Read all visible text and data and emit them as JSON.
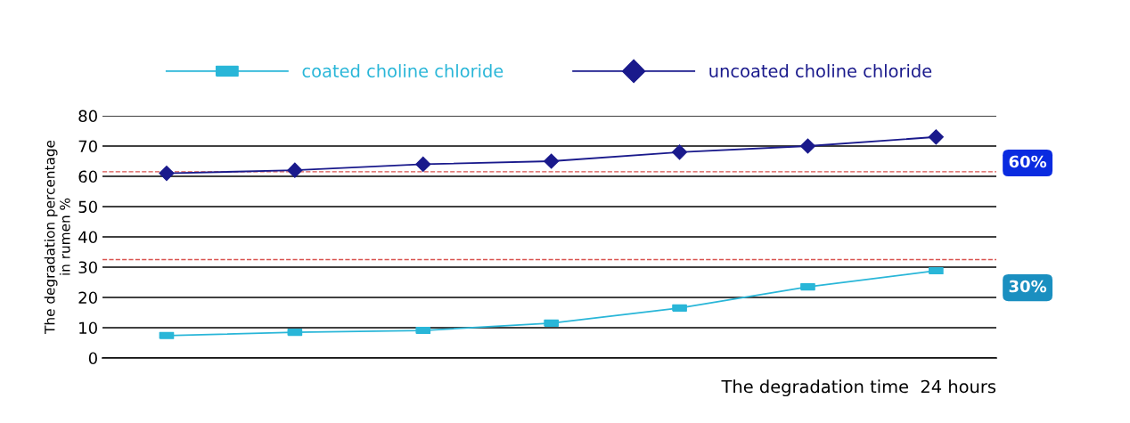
{
  "chart_data": {
    "type": "line",
    "categories": [
      null,
      null,
      null,
      null,
      null,
      null,
      null
    ],
    "series": [
      {
        "name": "coated choline chloride",
        "color": "#29b6d8",
        "marker": "square",
        "values": [
          7.4,
          8.5,
          9.1,
          11.5,
          16.5,
          23.5,
          28.8
        ]
      },
      {
        "name": "uncoated choline chloride",
        "color": "#1a1a8c",
        "marker": "diamond",
        "values": [
          61,
          62,
          64,
          65,
          68,
          70,
          73
        ]
      }
    ],
    "xlabel": "The degradation time  24 hours",
    "ylabel": "The degradation percentage\nin rumen %",
    "ylim": [
      0,
      80
    ],
    "yticks": [
      0,
      10,
      20,
      30,
      40,
      50,
      60,
      70,
      80
    ],
    "grid": "y",
    "legend": "top",
    "line_style": "solid",
    "ref_lines": [
      {
        "axis": "y",
        "value": 61.5,
        "color": "#d9534f",
        "line_style": "dashed"
      },
      {
        "axis": "y",
        "value": 32.5,
        "color": "#d9534f",
        "line_style": "dashed"
      }
    ],
    "annotations": [
      "60%",
      "30%"
    ]
  }
}
